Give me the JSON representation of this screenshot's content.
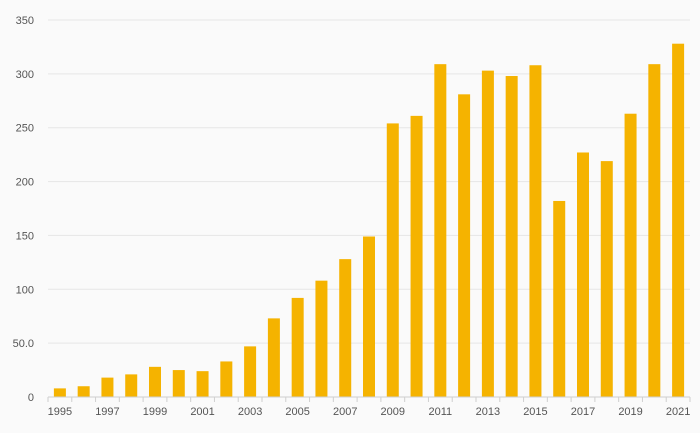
{
  "chart_data": {
    "type": "bar",
    "title": "",
    "xlabel": "",
    "ylabel": "",
    "categories": [
      "1995",
      "1996",
      "1997",
      "1998",
      "1999",
      "2000",
      "2001",
      "2002",
      "2003",
      "2004",
      "2005",
      "2006",
      "2007",
      "2008",
      "2009",
      "2010",
      "2011",
      "2012",
      "2013",
      "2014",
      "2015",
      "2016",
      "2017",
      "2018",
      "2019",
      "2020",
      "2021"
    ],
    "values": [
      8,
      10,
      18,
      21,
      28,
      25,
      24,
      33,
      47,
      73,
      92,
      108,
      128,
      149,
      254,
      261,
      309,
      281,
      303,
      298,
      308,
      182,
      227,
      219,
      263,
      309,
      328
    ],
    "ylim": [
      0,
      350
    ],
    "yticks": [
      0,
      50,
      100,
      150,
      200,
      250,
      300,
      350
    ],
    "ytick_labels": [
      "0",
      "50.0",
      "100",
      "150",
      "200",
      "250",
      "300",
      "350"
    ],
    "xtick_labels": [
      "1995",
      "1997",
      "1999",
      "2001",
      "2003",
      "2005",
      "2007",
      "2009",
      "2011",
      "2013",
      "2015",
      "2017",
      "2019",
      "2021"
    ],
    "grid": true,
    "bar_color": "#f5b300",
    "grid_color": "#e6e6e6",
    "axis_color": "#cfcfcf",
    "text_color": "#555555"
  }
}
